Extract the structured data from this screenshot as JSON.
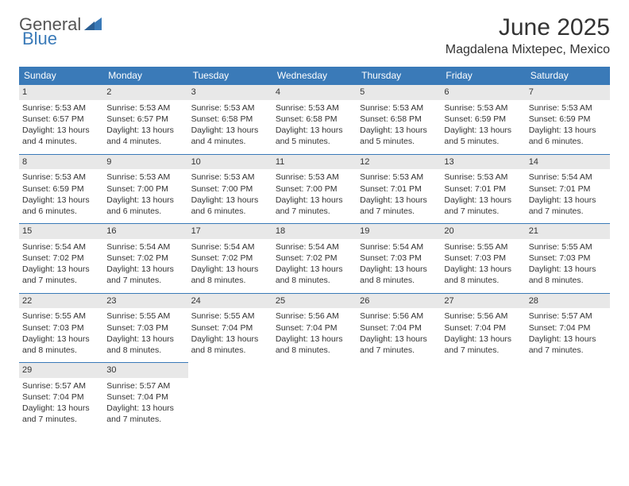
{
  "brand": {
    "part1": "General",
    "part2": "Blue"
  },
  "title": "June 2025",
  "location": "Magdalena Mixtepec, Mexico",
  "colors": {
    "header_bg": "#3a7ab8",
    "header_text": "#ffffff",
    "daynum_bg": "#e8e8e8",
    "border": "#3a7ab8",
    "text": "#333333",
    "page_bg": "#ffffff"
  },
  "weekdays": [
    "Sunday",
    "Monday",
    "Tuesday",
    "Wednesday",
    "Thursday",
    "Friday",
    "Saturday"
  ],
  "weeks": [
    [
      {
        "day": "1",
        "sunrise": "Sunrise: 5:53 AM",
        "sunset": "Sunset: 6:57 PM",
        "dl1": "Daylight: 13 hours",
        "dl2": "and 4 minutes."
      },
      {
        "day": "2",
        "sunrise": "Sunrise: 5:53 AM",
        "sunset": "Sunset: 6:57 PM",
        "dl1": "Daylight: 13 hours",
        "dl2": "and 4 minutes."
      },
      {
        "day": "3",
        "sunrise": "Sunrise: 5:53 AM",
        "sunset": "Sunset: 6:58 PM",
        "dl1": "Daylight: 13 hours",
        "dl2": "and 4 minutes."
      },
      {
        "day": "4",
        "sunrise": "Sunrise: 5:53 AM",
        "sunset": "Sunset: 6:58 PM",
        "dl1": "Daylight: 13 hours",
        "dl2": "and 5 minutes."
      },
      {
        "day": "5",
        "sunrise": "Sunrise: 5:53 AM",
        "sunset": "Sunset: 6:58 PM",
        "dl1": "Daylight: 13 hours",
        "dl2": "and 5 minutes."
      },
      {
        "day": "6",
        "sunrise": "Sunrise: 5:53 AM",
        "sunset": "Sunset: 6:59 PM",
        "dl1": "Daylight: 13 hours",
        "dl2": "and 5 minutes."
      },
      {
        "day": "7",
        "sunrise": "Sunrise: 5:53 AM",
        "sunset": "Sunset: 6:59 PM",
        "dl1": "Daylight: 13 hours",
        "dl2": "and 6 minutes."
      }
    ],
    [
      {
        "day": "8",
        "sunrise": "Sunrise: 5:53 AM",
        "sunset": "Sunset: 6:59 PM",
        "dl1": "Daylight: 13 hours",
        "dl2": "and 6 minutes."
      },
      {
        "day": "9",
        "sunrise": "Sunrise: 5:53 AM",
        "sunset": "Sunset: 7:00 PM",
        "dl1": "Daylight: 13 hours",
        "dl2": "and 6 minutes."
      },
      {
        "day": "10",
        "sunrise": "Sunrise: 5:53 AM",
        "sunset": "Sunset: 7:00 PM",
        "dl1": "Daylight: 13 hours",
        "dl2": "and 6 minutes."
      },
      {
        "day": "11",
        "sunrise": "Sunrise: 5:53 AM",
        "sunset": "Sunset: 7:00 PM",
        "dl1": "Daylight: 13 hours",
        "dl2": "and 7 minutes."
      },
      {
        "day": "12",
        "sunrise": "Sunrise: 5:53 AM",
        "sunset": "Sunset: 7:01 PM",
        "dl1": "Daylight: 13 hours",
        "dl2": "and 7 minutes."
      },
      {
        "day": "13",
        "sunrise": "Sunrise: 5:53 AM",
        "sunset": "Sunset: 7:01 PM",
        "dl1": "Daylight: 13 hours",
        "dl2": "and 7 minutes."
      },
      {
        "day": "14",
        "sunrise": "Sunrise: 5:54 AM",
        "sunset": "Sunset: 7:01 PM",
        "dl1": "Daylight: 13 hours",
        "dl2": "and 7 minutes."
      }
    ],
    [
      {
        "day": "15",
        "sunrise": "Sunrise: 5:54 AM",
        "sunset": "Sunset: 7:02 PM",
        "dl1": "Daylight: 13 hours",
        "dl2": "and 7 minutes."
      },
      {
        "day": "16",
        "sunrise": "Sunrise: 5:54 AM",
        "sunset": "Sunset: 7:02 PM",
        "dl1": "Daylight: 13 hours",
        "dl2": "and 7 minutes."
      },
      {
        "day": "17",
        "sunrise": "Sunrise: 5:54 AM",
        "sunset": "Sunset: 7:02 PM",
        "dl1": "Daylight: 13 hours",
        "dl2": "and 8 minutes."
      },
      {
        "day": "18",
        "sunrise": "Sunrise: 5:54 AM",
        "sunset": "Sunset: 7:02 PM",
        "dl1": "Daylight: 13 hours",
        "dl2": "and 8 minutes."
      },
      {
        "day": "19",
        "sunrise": "Sunrise: 5:54 AM",
        "sunset": "Sunset: 7:03 PM",
        "dl1": "Daylight: 13 hours",
        "dl2": "and 8 minutes."
      },
      {
        "day": "20",
        "sunrise": "Sunrise: 5:55 AM",
        "sunset": "Sunset: 7:03 PM",
        "dl1": "Daylight: 13 hours",
        "dl2": "and 8 minutes."
      },
      {
        "day": "21",
        "sunrise": "Sunrise: 5:55 AM",
        "sunset": "Sunset: 7:03 PM",
        "dl1": "Daylight: 13 hours",
        "dl2": "and 8 minutes."
      }
    ],
    [
      {
        "day": "22",
        "sunrise": "Sunrise: 5:55 AM",
        "sunset": "Sunset: 7:03 PM",
        "dl1": "Daylight: 13 hours",
        "dl2": "and 8 minutes."
      },
      {
        "day": "23",
        "sunrise": "Sunrise: 5:55 AM",
        "sunset": "Sunset: 7:03 PM",
        "dl1": "Daylight: 13 hours",
        "dl2": "and 8 minutes."
      },
      {
        "day": "24",
        "sunrise": "Sunrise: 5:55 AM",
        "sunset": "Sunset: 7:04 PM",
        "dl1": "Daylight: 13 hours",
        "dl2": "and 8 minutes."
      },
      {
        "day": "25",
        "sunrise": "Sunrise: 5:56 AM",
        "sunset": "Sunset: 7:04 PM",
        "dl1": "Daylight: 13 hours",
        "dl2": "and 8 minutes."
      },
      {
        "day": "26",
        "sunrise": "Sunrise: 5:56 AM",
        "sunset": "Sunset: 7:04 PM",
        "dl1": "Daylight: 13 hours",
        "dl2": "and 7 minutes."
      },
      {
        "day": "27",
        "sunrise": "Sunrise: 5:56 AM",
        "sunset": "Sunset: 7:04 PM",
        "dl1": "Daylight: 13 hours",
        "dl2": "and 7 minutes."
      },
      {
        "day": "28",
        "sunrise": "Sunrise: 5:57 AM",
        "sunset": "Sunset: 7:04 PM",
        "dl1": "Daylight: 13 hours",
        "dl2": "and 7 minutes."
      }
    ],
    [
      {
        "day": "29",
        "sunrise": "Sunrise: 5:57 AM",
        "sunset": "Sunset: 7:04 PM",
        "dl1": "Daylight: 13 hours",
        "dl2": "and 7 minutes."
      },
      {
        "day": "30",
        "sunrise": "Sunrise: 5:57 AM",
        "sunset": "Sunset: 7:04 PM",
        "dl1": "Daylight: 13 hours",
        "dl2": "and 7 minutes."
      },
      null,
      null,
      null,
      null,
      null
    ]
  ]
}
